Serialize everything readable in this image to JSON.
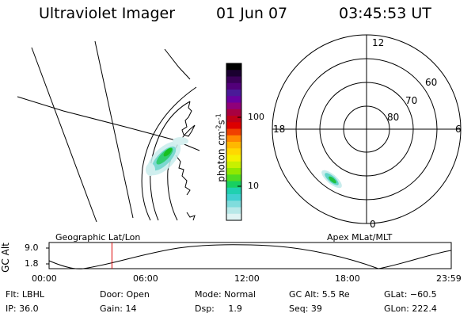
{
  "header": {
    "title": "Ultraviolet Imager",
    "date": "01 Jun 07",
    "time": "03:45:53 UT"
  },
  "panels": {
    "left_caption": "Geographic Lat/Lon",
    "right_caption": "Apex MLat/MLT"
  },
  "colorbar": {
    "label": "photon cm",
    "label_sup1": "-2",
    "label_s": "s",
    "label_sup2": "-1",
    "ticks": [
      "100",
      "10"
    ],
    "colors": [
      "#000000",
      "#1a0030",
      "#3a0058",
      "#52007a",
      "#4a1a98",
      "#6a00a0",
      "#90007a",
      "#a80040",
      "#c00018",
      "#dd0000",
      "#f04000",
      "#ff8800",
      "#ffb800",
      "#ffd800",
      "#f4f000",
      "#c8f000",
      "#90e800",
      "#50dc20",
      "#18d060",
      "#20d0b0",
      "#40d0d0",
      "#80dcdc",
      "#b8e8e8",
      "#e0f4f4"
    ]
  },
  "polar_grid": {
    "mlt_labels": [
      "12",
      "18",
      "6",
      "0"
    ],
    "lat_labels": [
      "60",
      "70",
      "80"
    ]
  },
  "timeline": {
    "ylabel": "GC Alt",
    "y_ticks": [
      "9.0",
      "1.8"
    ],
    "x_ticks": [
      "00:00",
      "06:00",
      "12:00",
      "18:00",
      "23:59"
    ],
    "marker_time": "03:45"
  },
  "status": {
    "row1": [
      "Flt: LBHL",
      "Door: Open",
      "Mode: Normal",
      "GC Alt: 5.5 Re",
      "GLat: −60.5"
    ],
    "row2": [
      "IP: 36.0",
      "Gain: 14",
      "Dsp:     1.9",
      "Seq: 39",
      "GLon: 222.4"
    ]
  },
  "colors": {
    "marker": "#dd0000",
    "foreground": "#000000",
    "background": "#ffffff"
  }
}
